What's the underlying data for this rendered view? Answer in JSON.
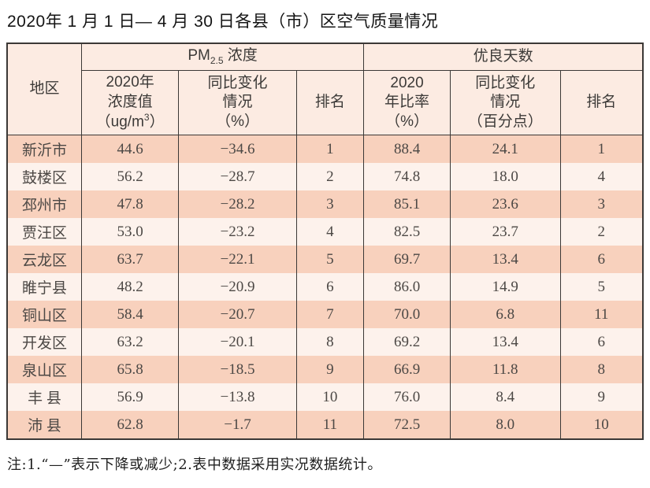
{
  "page": {
    "title": "2020年 1 月 1 日— 4 月 30 日各县（市）区空气质量情况",
    "footnote": "注:1.“—”表示下降或减少;2.表中数据采用实况数据统计。"
  },
  "table": {
    "header": {
      "region": "地区",
      "pm_group": {
        "prefix": "PM",
        "sub": "2.5",
        "suffix": " 浓度"
      },
      "good_group": "优良天数",
      "pm_value": {
        "l1": "2020年",
        "l2": "浓度值",
        "l3a": "（ug/m",
        "l3sup": "3",
        "l3b": "）"
      },
      "pm_change": {
        "l1": "同比变化",
        "l2": "情况",
        "l3": "（%）"
      },
      "pm_rank": "排名",
      "good_ratio": {
        "l1": "2020",
        "l2": "年比率",
        "l3": "（%）"
      },
      "good_change": {
        "l1": "同比变化",
        "l2": "情况",
        "l3": "（百分点）"
      },
      "good_rank": "排名"
    },
    "rows": [
      {
        "region": "新沂市",
        "pm_value": "44.6",
        "pm_change": "−34.6",
        "pm_rank": "1",
        "good_ratio": "88.4",
        "good_change": "24.1",
        "good_rank": "1"
      },
      {
        "region": "鼓楼区",
        "pm_value": "56.2",
        "pm_change": "−28.7",
        "pm_rank": "2",
        "good_ratio": "74.8",
        "good_change": "18.0",
        "good_rank": "4"
      },
      {
        "region": "邳州市",
        "pm_value": "47.8",
        "pm_change": "−28.2",
        "pm_rank": "3",
        "good_ratio": "85.1",
        "good_change": "23.6",
        "good_rank": "3"
      },
      {
        "region": "贾汪区",
        "pm_value": "53.0",
        "pm_change": "−23.2",
        "pm_rank": "4",
        "good_ratio": "82.5",
        "good_change": "23.7",
        "good_rank": "2"
      },
      {
        "region": "云龙区",
        "pm_value": "63.7",
        "pm_change": "−22.1",
        "pm_rank": "5",
        "good_ratio": "69.7",
        "good_change": "13.4",
        "good_rank": "6"
      },
      {
        "region": "睢宁县",
        "pm_value": "48.2",
        "pm_change": "−20.9",
        "pm_rank": "6",
        "good_ratio": "86.0",
        "good_change": "14.9",
        "good_rank": "5"
      },
      {
        "region": "铜山区",
        "pm_value": "58.4",
        "pm_change": "−20.7",
        "pm_rank": "7",
        "good_ratio": "70.0",
        "good_change": "6.8",
        "good_rank": "11"
      },
      {
        "region": "开发区",
        "pm_value": "63.2",
        "pm_change": "−20.1",
        "pm_rank": "8",
        "good_ratio": "69.2",
        "good_change": "13.4",
        "good_rank": "6"
      },
      {
        "region": "泉山区",
        "pm_value": "65.8",
        "pm_change": "−18.5",
        "pm_rank": "9",
        "good_ratio": "66.9",
        "good_change": "11.8",
        "good_rank": "8"
      },
      {
        "region": "丰 县",
        "pm_value": "56.9",
        "pm_change": "−13.8",
        "pm_rank": "10",
        "good_ratio": "76.0",
        "good_change": "8.4",
        "good_rank": "9"
      },
      {
        "region": "沛 县",
        "pm_value": "62.8",
        "pm_change": "−1.7",
        "pm_rank": "11",
        "good_ratio": "72.5",
        "good_change": "8.0",
        "good_rank": "10"
      }
    ]
  },
  "colors": {
    "row_odd": "#f8d1bd",
    "row_even": "#fdf2ec",
    "header_bg": "#fcebe2",
    "border": "#3b3836",
    "body_text": "#4c4845",
    "title_text": "#141414"
  },
  "chart_data": {
    "type": "table",
    "title": "2020年1月1日—4月30日各县（市）区空气质量情况",
    "column_groups": [
      "PM2.5浓度",
      "优良天数"
    ],
    "columns": [
      "地区",
      "2020年浓度值（ug/m3）",
      "同比变化情况（%）",
      "排名",
      "2020年比率（%）",
      "同比变化情况（百分点）",
      "排名"
    ],
    "rows": [
      [
        "新沂市",
        44.6,
        -34.6,
        1,
        88.4,
        24.1,
        1
      ],
      [
        "鼓楼区",
        56.2,
        -28.7,
        2,
        74.8,
        18.0,
        4
      ],
      [
        "邳州市",
        47.8,
        -28.2,
        3,
        85.1,
        23.6,
        3
      ],
      [
        "贾汪区",
        53.0,
        -23.2,
        4,
        82.5,
        23.7,
        2
      ],
      [
        "云龙区",
        63.7,
        -22.1,
        5,
        69.7,
        13.4,
        6
      ],
      [
        "睢宁县",
        48.2,
        -20.9,
        6,
        86.0,
        14.9,
        5
      ],
      [
        "铜山区",
        58.4,
        -20.7,
        7,
        70.0,
        6.8,
        11
      ],
      [
        "开发区",
        63.2,
        -20.1,
        8,
        69.2,
        13.4,
        6
      ],
      [
        "泉山区",
        65.8,
        -18.5,
        9,
        66.9,
        11.8,
        8
      ],
      [
        "丰县",
        56.9,
        -13.8,
        10,
        76.0,
        8.4,
        9
      ],
      [
        "沛县",
        62.8,
        -1.7,
        11,
        72.5,
        8.0,
        10
      ]
    ],
    "footnote": "注:1.“—”表示下降或减少;2.表中数据采用实况数据统计。"
  }
}
